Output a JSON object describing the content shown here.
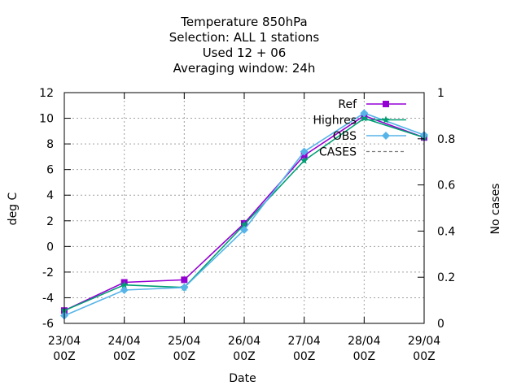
{
  "chart_data": {
    "type": "line",
    "title_lines": [
      "Temperature 850hPa",
      "Selection: ALL      1 stations",
      "Used  12 + 06",
      "Averaging window: 24h"
    ],
    "xlabel": "Date",
    "ylabel": "deg C",
    "y2label": "No cases",
    "x_ticks": [
      {
        "line1": "23/04",
        "line2": "00Z"
      },
      {
        "line1": "24/04",
        "line2": "00Z"
      },
      {
        "line1": "25/04",
        "line2": "00Z"
      },
      {
        "line1": "26/04",
        "line2": "00Z"
      },
      {
        "line1": "27/04",
        "line2": "00Z"
      },
      {
        "line1": "28/04",
        "line2": "00Z"
      },
      {
        "line1": "29/04",
        "line2": "00Z"
      }
    ],
    "xlim": [
      0,
      6
    ],
    "ylim": [
      -6,
      12
    ],
    "y_ticks": [
      "12",
      "10",
      "8",
      "6",
      "4",
      "2",
      "0",
      "-2",
      "-4",
      "-6"
    ],
    "y2lim": [
      0,
      1
    ],
    "y2_ticks": [
      "1",
      "0.8",
      "0.6",
      "0.4",
      "0.2",
      "0"
    ],
    "grid": true,
    "legend_position": "top-right",
    "series": [
      {
        "name": "Ref",
        "color": "#9400d3",
        "marker": "square",
        "x": [
          0,
          1,
          2,
          3,
          4,
          5,
          6
        ],
        "y": [
          -5.0,
          -2.8,
          -2.6,
          1.8,
          7.1,
          10.2,
          8.5
        ]
      },
      {
        "name": "Highres",
        "color": "#009e73",
        "marker": "star",
        "x": [
          0,
          1,
          2,
          3,
          4,
          5,
          6
        ],
        "y": [
          -5.0,
          -3.0,
          -3.2,
          1.7,
          6.7,
          10.0,
          8.5
        ]
      },
      {
        "name": "OBS",
        "color": "#56b4e9",
        "marker": "diamond",
        "x": [
          0,
          1,
          2,
          3,
          4,
          5,
          6
        ],
        "y": [
          -5.4,
          -3.4,
          -3.2,
          1.3,
          7.4,
          10.4,
          8.7
        ]
      },
      {
        "name": "CASES",
        "color": "#808080",
        "dashed": true,
        "x": [],
        "y": []
      }
    ]
  }
}
